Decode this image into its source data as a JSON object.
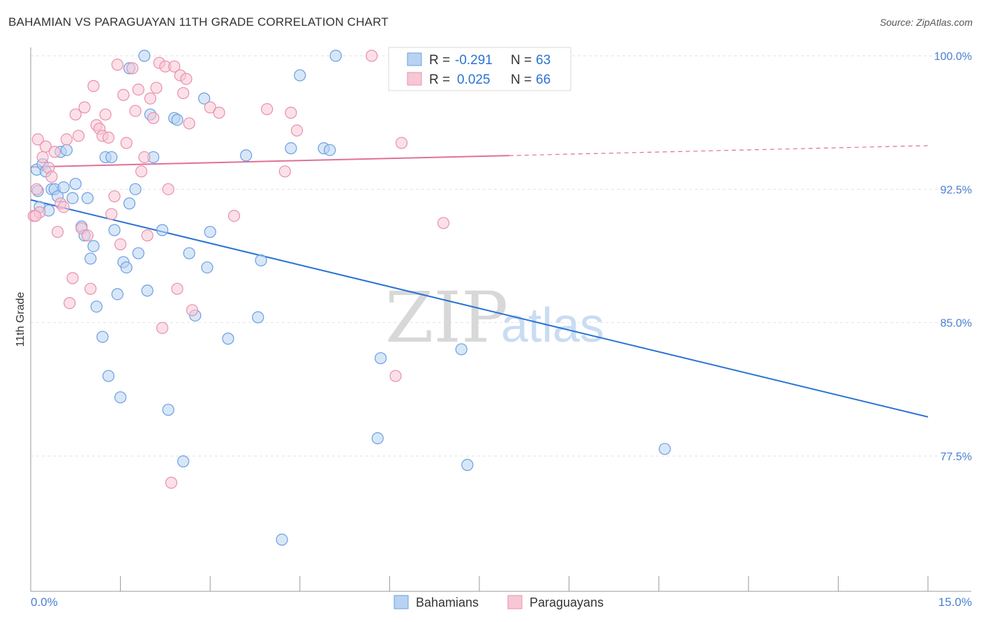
{
  "header": {
    "title": "BAHAMIAN VS PARAGUAYAN 11TH GRADE CORRELATION CHART",
    "source": "Source: ZipAtlas.com"
  },
  "watermark": {
    "part1": "ZIP",
    "part2": "atlas"
  },
  "colors": {
    "blue_fill": "#b8d3f2",
    "blue_stroke": "#6a9fe0",
    "blue_line": "#2a72d4",
    "pink_fill": "#f7c7d5",
    "pink_stroke": "#e890ac",
    "pink_line": "#e0709a",
    "tick_label": "#4a7fd0",
    "grid": "#e2e2e2"
  },
  "legend_top": {
    "r_label": "R =",
    "n_label": "N =",
    "rows": [
      {
        "r": "-0.291",
        "n": "63",
        "series": "blue"
      },
      {
        "r": "0.025",
        "n": "66",
        "series": "pink"
      }
    ]
  },
  "legend_bottom": [
    "Bahamians",
    "Paraguayans"
  ],
  "chart_data": {
    "type": "scatter",
    "title": "BAHAMIAN VS PARAGUAYAN 11TH GRADE CORRELATION CHART",
    "xlabel": "",
    "ylabel": "11th Grade",
    "xlim": [
      0,
      15
    ],
    "ylim": [
      70.0,
      101.0
    ],
    "x_tick_labels": [
      "0.0%",
      "15.0%"
    ],
    "y_ticks": [
      77.5,
      85.0,
      92.5,
      100.0
    ],
    "y_tick_labels": [
      "77.5%",
      "85.0%",
      "92.5%",
      "100.0%"
    ],
    "grid": true,
    "legend_position": "top-center",
    "series": [
      {
        "name": "Bahamians",
        "r": -0.291,
        "n": 63,
        "trend": {
          "x": [
            0,
            15
          ],
          "y": [
            91.9,
            79.7
          ],
          "dashed_from": null
        },
        "points": [
          [
            0.1,
            93.6
          ],
          [
            0.12,
            92.4
          ],
          [
            0.15,
            91.5
          ],
          [
            0.2,
            93.9
          ],
          [
            0.25,
            93.5
          ],
          [
            0.3,
            91.3
          ],
          [
            0.35,
            92.5
          ],
          [
            0.4,
            92.5
          ],
          [
            0.45,
            92.1
          ],
          [
            0.5,
            94.6
          ],
          [
            0.55,
            92.6
          ],
          [
            0.6,
            94.7
          ],
          [
            0.7,
            92.0
          ],
          [
            0.75,
            92.8
          ],
          [
            0.85,
            90.4
          ],
          [
            0.9,
            89.9
          ],
          [
            0.95,
            92.0
          ],
          [
            1.0,
            88.6
          ],
          [
            1.05,
            89.3
          ],
          [
            1.1,
            85.9
          ],
          [
            1.2,
            84.2
          ],
          [
            1.25,
            94.3
          ],
          [
            1.3,
            82.0
          ],
          [
            1.35,
            94.3
          ],
          [
            1.4,
            90.2
          ],
          [
            1.45,
            86.6
          ],
          [
            1.5,
            80.8
          ],
          [
            1.55,
            88.4
          ],
          [
            1.6,
            88.1
          ],
          [
            1.65,
            99.3
          ],
          [
            1.65,
            91.7
          ],
          [
            1.75,
            92.5
          ],
          [
            1.8,
            88.9
          ],
          [
            1.9,
            100.0
          ],
          [
            1.95,
            86.8
          ],
          [
            2.0,
            96.7
          ],
          [
            2.05,
            94.3
          ],
          [
            2.2,
            90.2
          ],
          [
            2.3,
            80.1
          ],
          [
            2.4,
            96.5
          ],
          [
            2.45,
            96.4
          ],
          [
            2.55,
            77.2
          ],
          [
            2.65,
            88.9
          ],
          [
            2.75,
            85.4
          ],
          [
            2.9,
            97.6
          ],
          [
            2.95,
            88.1
          ],
          [
            3.0,
            90.1
          ],
          [
            3.3,
            84.1
          ],
          [
            3.6,
            94.4
          ],
          [
            3.8,
            85.3
          ],
          [
            3.85,
            88.5
          ],
          [
            4.2,
            72.8
          ],
          [
            4.35,
            94.8
          ],
          [
            4.5,
            98.9
          ],
          [
            4.9,
            94.8
          ],
          [
            5.0,
            94.7
          ],
          [
            5.1,
            100.0
          ],
          [
            5.8,
            78.5
          ],
          [
            5.85,
            83.0
          ],
          [
            7.2,
            83.5
          ],
          [
            7.3,
            77.0
          ],
          [
            7.35,
            100.0
          ],
          [
            10.6,
            77.9
          ]
        ]
      },
      {
        "name": "Paraguayans",
        "r": 0.025,
        "n": 66,
        "trend": {
          "x": [
            0,
            15
          ],
          "y": [
            93.75,
            94.95
          ],
          "dashed_from": 8.0
        },
        "points": [
          [
            0.05,
            91.0
          ],
          [
            0.1,
            92.5
          ],
          [
            0.12,
            95.3
          ],
          [
            0.15,
            91.2
          ],
          [
            0.2,
            94.3
          ],
          [
            0.25,
            94.9
          ],
          [
            0.3,
            93.7
          ],
          [
            0.35,
            93.2
          ],
          [
            0.4,
            94.6
          ],
          [
            0.45,
            90.1
          ],
          [
            0.5,
            91.7
          ],
          [
            0.55,
            91.5
          ],
          [
            0.6,
            95.3
          ],
          [
            0.65,
            86.1
          ],
          [
            0.7,
            87.5
          ],
          [
            0.75,
            96.7
          ],
          [
            0.8,
            95.5
          ],
          [
            0.85,
            90.3
          ],
          [
            0.9,
            97.1
          ],
          [
            0.95,
            89.9
          ],
          [
            1.0,
            86.9
          ],
          [
            1.05,
            98.3
          ],
          [
            1.1,
            96.1
          ],
          [
            1.15,
            95.9
          ],
          [
            1.2,
            95.5
          ],
          [
            1.25,
            96.7
          ],
          [
            1.3,
            95.4
          ],
          [
            1.35,
            91.1
          ],
          [
            1.4,
            92.1
          ],
          [
            1.45,
            99.5
          ],
          [
            1.5,
            89.4
          ],
          [
            1.55,
            97.8
          ],
          [
            1.6,
            95.1
          ],
          [
            1.7,
            99.3
          ],
          [
            1.75,
            96.9
          ],
          [
            1.8,
            98.1
          ],
          [
            1.85,
            93.5
          ],
          [
            1.9,
            94.3
          ],
          [
            1.95,
            89.9
          ],
          [
            2.0,
            97.6
          ],
          [
            2.05,
            96.5
          ],
          [
            2.1,
            98.2
          ],
          [
            2.15,
            99.6
          ],
          [
            2.2,
            84.7
          ],
          [
            2.25,
            99.4
          ],
          [
            2.3,
            92.5
          ],
          [
            2.35,
            76.0
          ],
          [
            2.4,
            99.4
          ],
          [
            2.5,
            98.9
          ],
          [
            2.55,
            97.9
          ],
          [
            2.6,
            98.7
          ],
          [
            2.65,
            96.2
          ],
          [
            2.7,
            85.7
          ],
          [
            3.0,
            97.1
          ],
          [
            3.15,
            96.8
          ],
          [
            3.4,
            91.0
          ],
          [
            3.95,
            97.0
          ],
          [
            4.25,
            93.5
          ],
          [
            4.35,
            96.8
          ],
          [
            4.45,
            95.8
          ],
          [
            5.7,
            100.0
          ],
          [
            6.1,
            82.0
          ],
          [
            6.2,
            95.1
          ],
          [
            6.9,
            90.6
          ],
          [
            0.08,
            91.0
          ],
          [
            2.45,
            86.9
          ]
        ]
      }
    ]
  }
}
